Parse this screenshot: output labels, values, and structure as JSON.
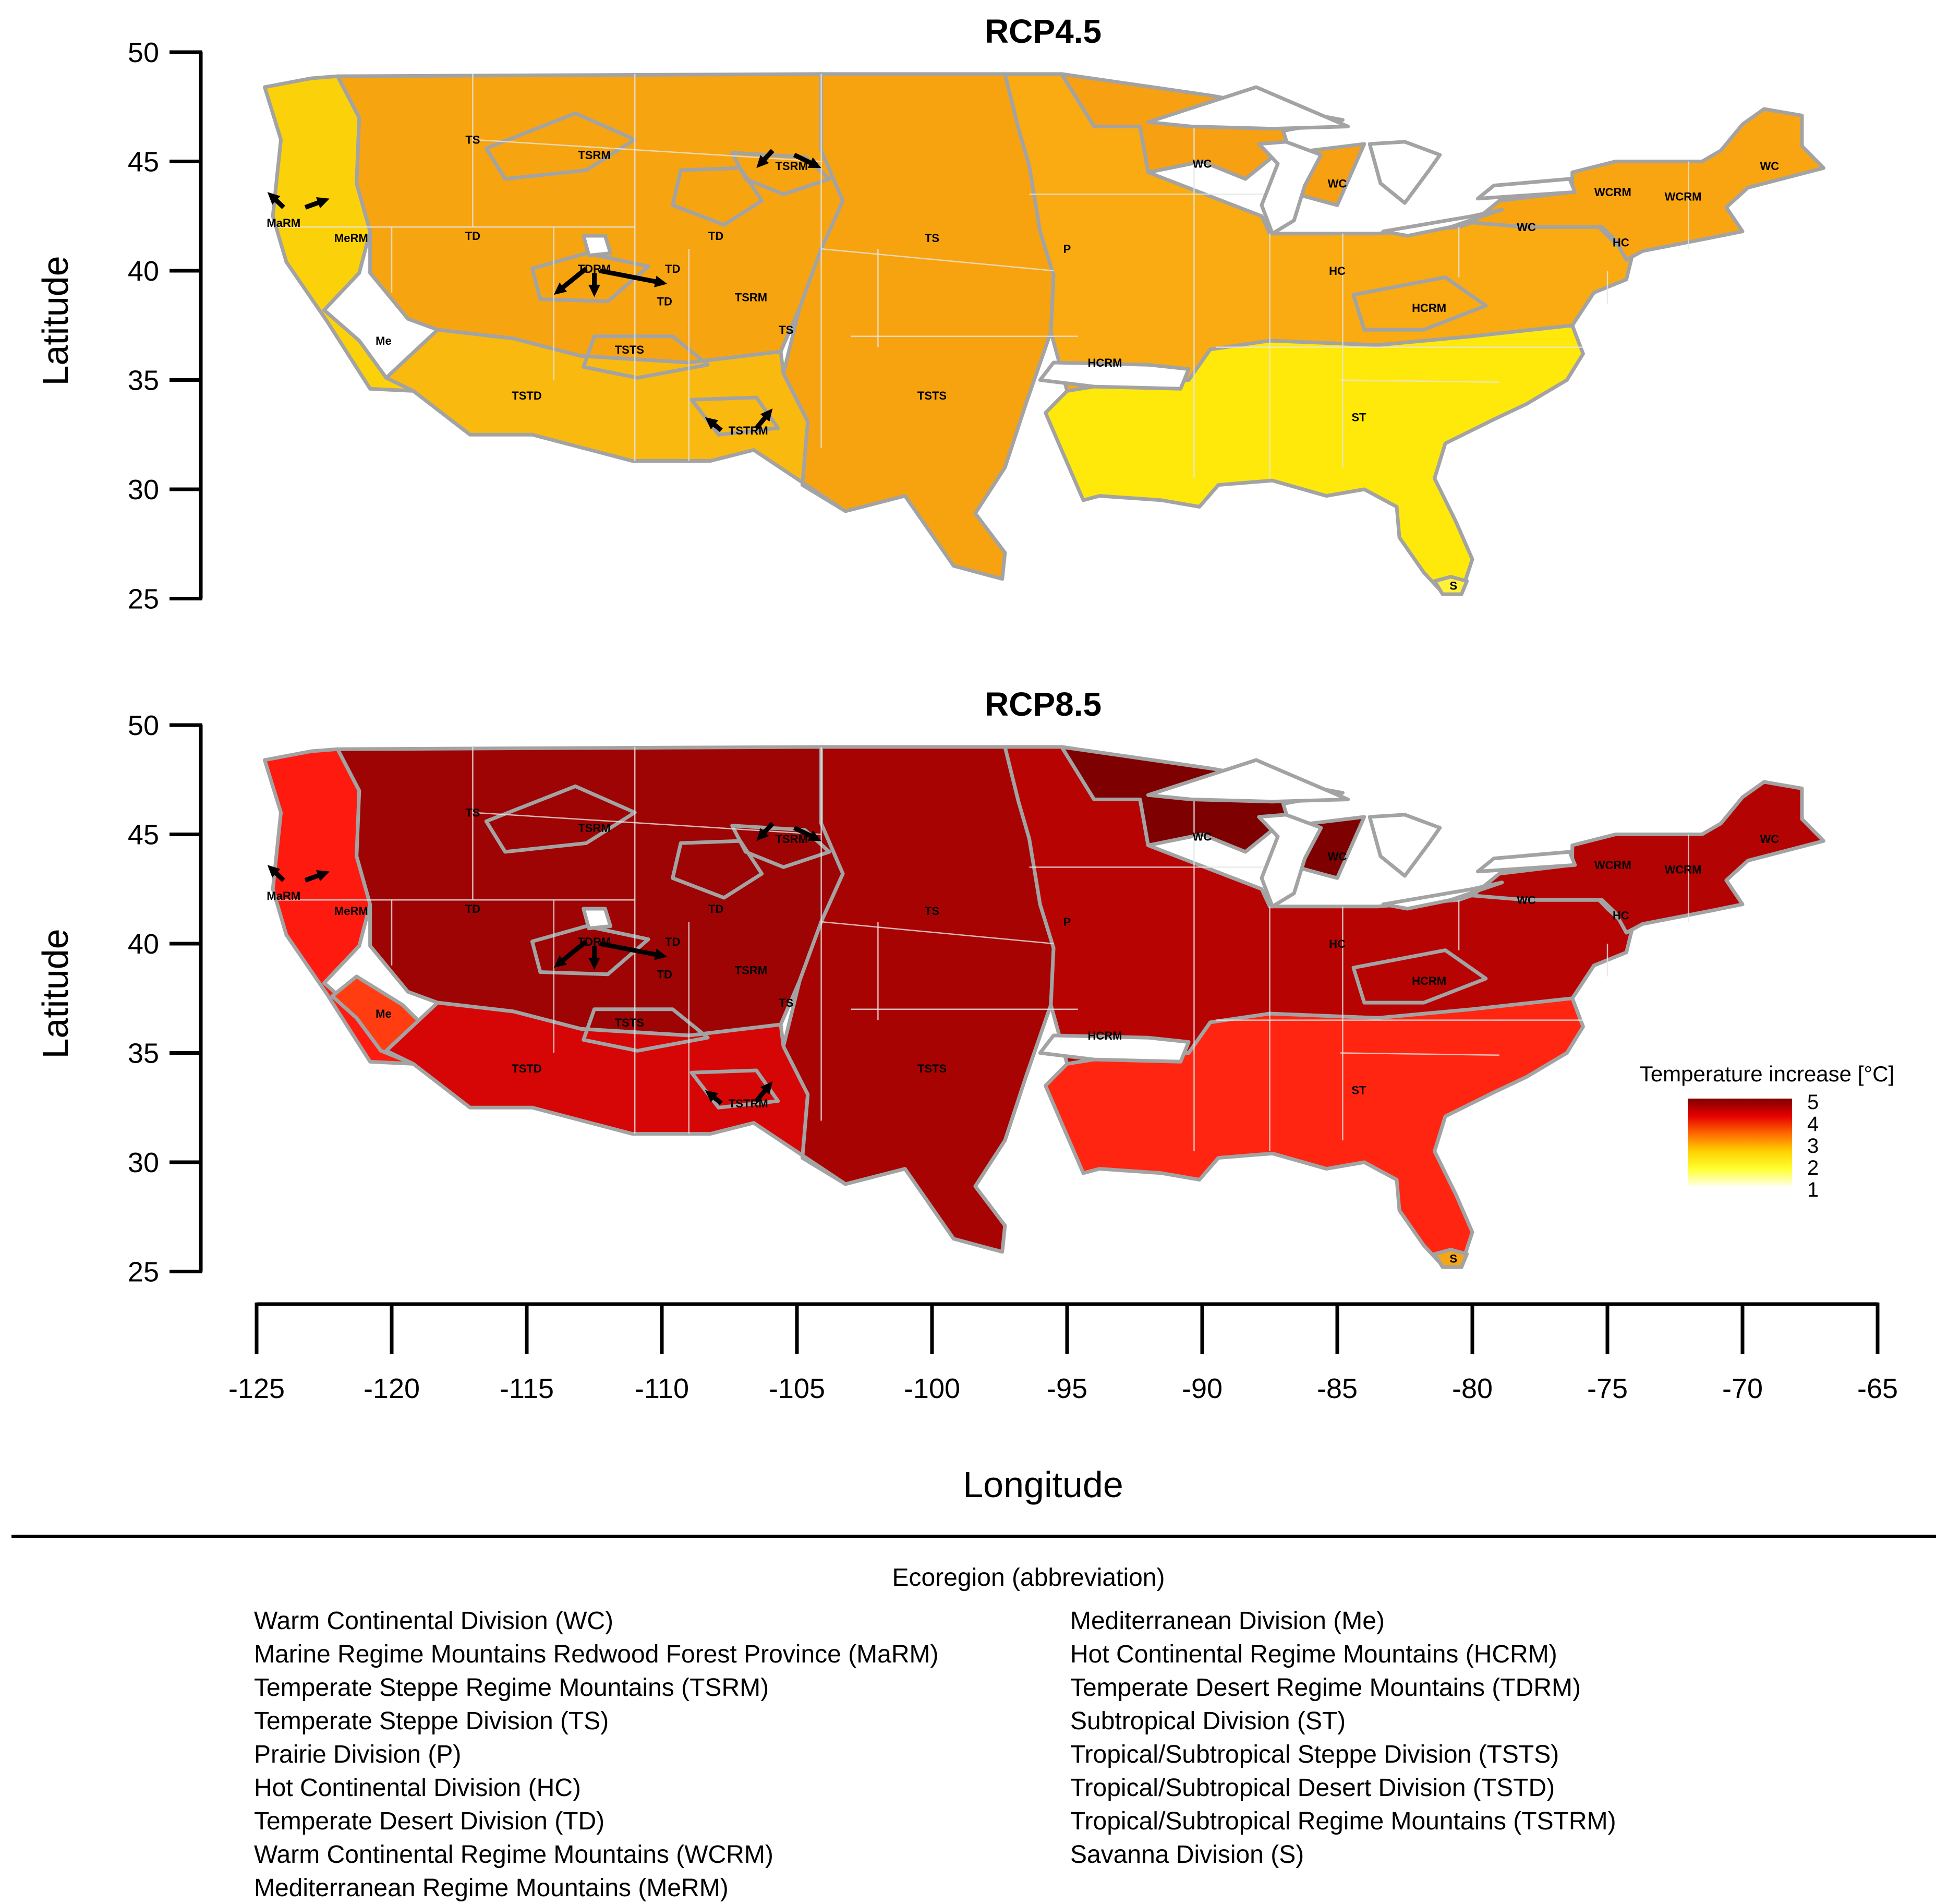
{
  "x_axis": {
    "label": "Longitude",
    "ticks": [
      -125,
      -120,
      -115,
      -110,
      -105,
      -100,
      -95,
      -90,
      -85,
      -80,
      -75,
      -70,
      -65
    ]
  },
  "y_axis": {
    "label": "Latitude",
    "ticks": [
      50,
      45,
      40,
      35,
      30,
      25
    ]
  },
  "lon_range": [
    -125,
    -65
  ],
  "lat_range": [
    25,
    50
  ],
  "panels": [
    {
      "title": "RCP4.5",
      "colors": {
        "pacific": "#fbd20a",
        "west": "#f7a411",
        "great_plains": "#f7a30f",
        "southwest": "#fab90f",
        "midwest": "#f9ab11",
        "southeast": "#ffe90b",
        "northeast": "#f9a512",
        "upper_midwest": "#f7a011",
        "florida_tip": "#fff03a"
      }
    },
    {
      "title": "RCP8.5",
      "colors": {
        "pacific": "#ff1a10",
        "california": "#ff3d10",
        "west": "#9e0404",
        "great_plains": "#a80303",
        "southwest": "#d60606",
        "midwest": "#b80303",
        "southeast": "#ff2511",
        "northeast": "#b30303",
        "upper_midwest": "#7f0000",
        "florida_tip": "#f5a518"
      }
    }
  ],
  "region_labels": [
    {
      "text": "TS",
      "lon": -117.0,
      "lat": 46.0
    },
    {
      "text": "TSRM",
      "lon": -112.5,
      "lat": 45.3
    },
    {
      "text": "TSRM",
      "lon": -105.2,
      "lat": 44.8
    },
    {
      "text": "WC",
      "lon": -90.0,
      "lat": 44.9
    },
    {
      "text": "WC",
      "lon": -85.0,
      "lat": 44.0
    },
    {
      "text": "WC",
      "lon": -69.0,
      "lat": 44.8
    },
    {
      "text": "WCRM",
      "lon": -74.8,
      "lat": 43.6
    },
    {
      "text": "WCRM",
      "lon": -72.2,
      "lat": 43.4
    },
    {
      "text": "WC",
      "lon": -78.0,
      "lat": 42.0
    },
    {
      "text": "HC",
      "lon": -74.5,
      "lat": 41.3
    },
    {
      "text": "MaRM",
      "lon": -124.0,
      "lat": 42.2
    },
    {
      "text": "MeRM",
      "lon": -121.5,
      "lat": 41.5
    },
    {
      "text": "TD",
      "lon": -117.0,
      "lat": 41.6
    },
    {
      "text": "TD",
      "lon": -108.0,
      "lat": 41.6
    },
    {
      "text": "TS",
      "lon": -100.0,
      "lat": 41.5
    },
    {
      "text": "P",
      "lon": -95.0,
      "lat": 41.0
    },
    {
      "text": "TDRM",
      "lon": -112.5,
      "lat": 40.1
    },
    {
      "text": "TD",
      "lon": -109.6,
      "lat": 40.1
    },
    {
      "text": "TD",
      "lon": -109.9,
      "lat": 38.6
    },
    {
      "text": "TSRM",
      "lon": -106.7,
      "lat": 38.8
    },
    {
      "text": "HC",
      "lon": -85.0,
      "lat": 40.0
    },
    {
      "text": "TS",
      "lon": -105.4,
      "lat": 37.3
    },
    {
      "text": "HCRM",
      "lon": -81.6,
      "lat": 38.3
    },
    {
      "text": "Me",
      "lon": -120.3,
      "lat": 36.8
    },
    {
      "text": "TSTS",
      "lon": -111.2,
      "lat": 36.4
    },
    {
      "text": "HCRM",
      "lon": -93.6,
      "lat": 35.8
    },
    {
      "text": "TSTD",
      "lon": -115.0,
      "lat": 34.3
    },
    {
      "text": "TSTS",
      "lon": -100.0,
      "lat": 34.3
    },
    {
      "text": "ST",
      "lon": -84.2,
      "lat": 33.3
    },
    {
      "text": "TSTRM",
      "lon": -106.8,
      "lat": 32.7
    },
    {
      "text": "S",
      "lon": -80.7,
      "lat": 25.6
    }
  ],
  "legend": {
    "title": "Temperature increase [°C]",
    "ticks": [
      5,
      4,
      3,
      2,
      1
    ],
    "colors": [
      "#7f0000",
      "#e60000",
      "#ff6a00",
      "#ffd000",
      "#ffff30",
      "#ffffe6"
    ]
  },
  "key": {
    "title": "Ecoregion (abbreviation)",
    "left": [
      "Warm Continental Division (WC)",
      "Marine Regime Mountains Redwood Forest Province (MaRM)",
      "Temperate Steppe Regime Mountains (TSRM)",
      "Temperate Steppe Division (TS)",
      "Prairie Division (P)",
      "Hot Continental Division (HC)",
      "Temperate Desert Division (TD)",
      "Warm Continental Regime Mountains (WCRM)",
      "Mediterranean Regime Mountains (MeRM)"
    ],
    "right": [
      "Mediterranean Division (Me)",
      "Hot Continental Regime Mountains (HCRM)",
      "Temperate Desert Regime Mountains (TDRM)",
      "Subtropical Division (ST)",
      "Tropical/Subtropical Steppe Division (TSTS)",
      "Tropical/Subtropical Desert Division (TSTD)",
      "Tropical/Subtropical Regime Mountains (TSTRM)",
      "Savanna Division (S)"
    ]
  }
}
